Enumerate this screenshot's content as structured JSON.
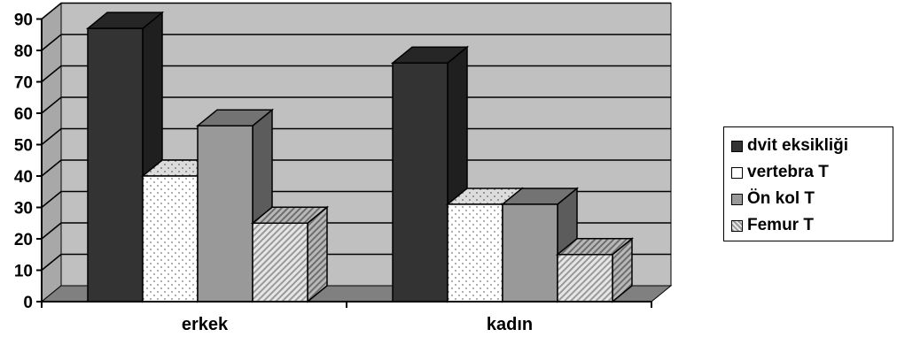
{
  "chart_data": {
    "type": "bar",
    "style": "3d-clustered-column",
    "categories": [
      "erkek",
      "kadın"
    ],
    "series": [
      {
        "name": "dvit eksikliği",
        "values": [
          87,
          76
        ],
        "color": "#333333",
        "pattern": "solid"
      },
      {
        "name": "vertebra T",
        "values": [
          40,
          31
        ],
        "color": "#ffffff",
        "pattern": "dots"
      },
      {
        "name": "Ön kol T",
        "values": [
          56,
          31
        ],
        "color": "#999999",
        "pattern": "solid"
      },
      {
        "name": "Femur T",
        "values": [
          25,
          15
        ],
        "color": "#cccccc",
        "pattern": "diagonal-stripes"
      }
    ],
    "yticks": [
      "0",
      "10",
      "20",
      "30",
      "40",
      "50",
      "60",
      "70",
      "80",
      "90"
    ],
    "ylim": [
      0,
      90
    ],
    "grid": true,
    "wall_color": "#c0c0c0",
    "floor_color": "#808080",
    "legend_position": "right"
  }
}
